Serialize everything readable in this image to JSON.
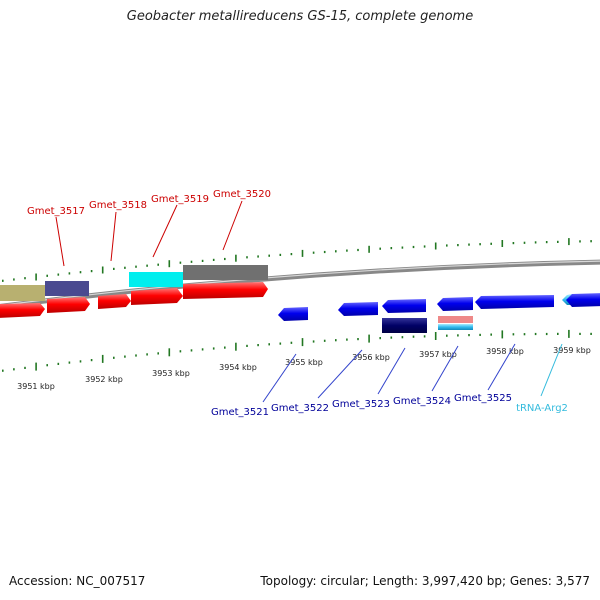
{
  "title": "Geobacter metallireducens GS-15, complete genome",
  "footer": {
    "accession": "Accession: NC_007517",
    "summary": "Topology: circular; Length: 3,997,420 bp; Genes: 3,577"
  },
  "scale_labels": [
    "3951 kbp",
    "3952 kbp",
    "3953 kbp",
    "3954 kbp",
    "3955 kbp",
    "3956 kbp",
    "3957 kbp",
    "3958 kbp",
    "3959 kbp"
  ],
  "upper_gene_labels": [
    "Gmet_3517",
    "Gmet_3518",
    "Gmet_3519",
    "Gmet_3520"
  ],
  "lower_gene_labels": [
    "Gmet_3521",
    "Gmet_3522",
    "Gmet_3523",
    "Gmet_3524",
    "Gmet_3525",
    "tRNA-Arg2"
  ],
  "colors": {
    "upper_label": "#cc0000",
    "lower_label": "#000099",
    "trna_label": "#33bbdd",
    "forward_gene": "#ff0000",
    "reverse_gene": "#0000ee",
    "dark_navy": "#000066",
    "olive": "#b8b070",
    "slate": "#4a4a90",
    "cyan": "#00eeee",
    "gray": "#707070",
    "tick": "#227722",
    "pink": "#ee8888"
  }
}
